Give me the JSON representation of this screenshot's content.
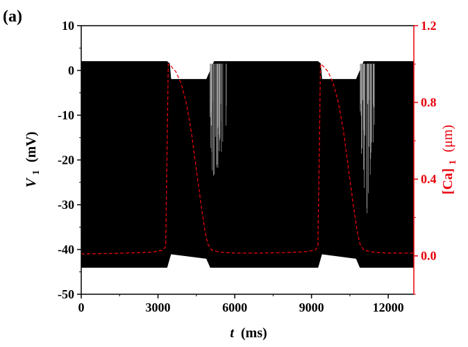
{
  "panel_label": "(a)",
  "chart_data": {
    "type": "line",
    "title": "",
    "xlabel_italic": "t",
    "xlabel_unit": "(ms)",
    "ylabel_italic": "V",
    "ylabel_sub": "1",
    "ylabel_unit": "(mV)",
    "y2label_main": "[Ca]",
    "y2label_sub": "1",
    "y2label_unit": "(μm)",
    "xlim": [
      0,
      13000
    ],
    "ylim": [
      -50,
      10
    ],
    "y2lim": [
      -0.2,
      1.2
    ],
    "xticks": [
      0,
      3000,
      6000,
      9000,
      12000
    ],
    "xtick_labels": [
      "0",
      "3000",
      "6000",
      "9000",
      "12000"
    ],
    "yticks": [
      10,
      0,
      -10,
      -20,
      -30,
      -40,
      -50
    ],
    "ytick_labels": [
      "10",
      "0",
      "-10",
      "-20",
      "-30",
      "-40",
      "-50"
    ],
    "y2ticks": [
      1.2,
      0.8,
      0.4,
      0.0
    ],
    "y2tick_labels": [
      "1.2",
      "0.8",
      "0.4",
      "0.0"
    ],
    "colors": {
      "V1": "#000000",
      "Ca1": "#e8000b",
      "axis_right": "#e8000b"
    },
    "series": [
      {
        "key": "V1",
        "axis": "left",
        "style": "solid",
        "envelope_upper": [
          [
            0,
            2
          ],
          [
            3350,
            2
          ],
          [
            3450,
            1.5
          ],
          [
            3500,
            -2
          ],
          [
            4900,
            -2
          ],
          [
            5050,
            0
          ],
          [
            5200,
            2
          ],
          [
            9250,
            2
          ],
          [
            9350,
            1.5
          ],
          [
            9400,
            -2
          ],
          [
            10750,
            -2
          ],
          [
            10900,
            0
          ],
          [
            11050,
            2
          ],
          [
            13000,
            2
          ]
        ],
        "envelope_lower": [
          [
            0,
            -44
          ],
          [
            3350,
            -44
          ],
          [
            3450,
            -42
          ],
          [
            3500,
            -41
          ],
          [
            4900,
            -42
          ],
          [
            5050,
            -44
          ],
          [
            5200,
            -44
          ],
          [
            9250,
            -44
          ],
          [
            9350,
            -42
          ],
          [
            9400,
            -41
          ],
          [
            10750,
            -42
          ],
          [
            10900,
            -44
          ],
          [
            11050,
            -44
          ],
          [
            13000,
            -44
          ]
        ],
        "spike_windows": [
          [
            5000,
            5700
          ],
          [
            10900,
            11500
          ]
        ]
      },
      {
        "key": "Ca1",
        "axis": "right",
        "style": "dashed",
        "points": [
          [
            0,
            0.01
          ],
          [
            1000,
            0.012
          ],
          [
            2000,
            0.016
          ],
          [
            2800,
            0.02
          ],
          [
            3200,
            0.03
          ],
          [
            3300,
            0.05
          ],
          [
            3350,
            0.5
          ],
          [
            3400,
            1.0
          ],
          [
            3500,
            0.99
          ],
          [
            3700,
            0.96
          ],
          [
            3900,
            0.9
          ],
          [
            4100,
            0.8
          ],
          [
            4300,
            0.65
          ],
          [
            4500,
            0.45
          ],
          [
            4700,
            0.25
          ],
          [
            4850,
            0.12
          ],
          [
            4950,
            0.06
          ],
          [
            5100,
            0.03
          ],
          [
            5400,
            0.02
          ],
          [
            6000,
            0.015
          ],
          [
            7000,
            0.015
          ],
          [
            8000,
            0.017
          ],
          [
            8800,
            0.022
          ],
          [
            9150,
            0.03
          ],
          [
            9250,
            0.05
          ],
          [
            9300,
            0.5
          ],
          [
            9350,
            1.0
          ],
          [
            9450,
            0.99
          ],
          [
            9650,
            0.96
          ],
          [
            9850,
            0.9
          ],
          [
            10050,
            0.8
          ],
          [
            10250,
            0.65
          ],
          [
            10450,
            0.45
          ],
          [
            10650,
            0.25
          ],
          [
            10800,
            0.12
          ],
          [
            10900,
            0.06
          ],
          [
            11050,
            0.03
          ],
          [
            11400,
            0.02
          ],
          [
            12000,
            0.015
          ],
          [
            13000,
            0.015
          ]
        ]
      }
    ]
  }
}
